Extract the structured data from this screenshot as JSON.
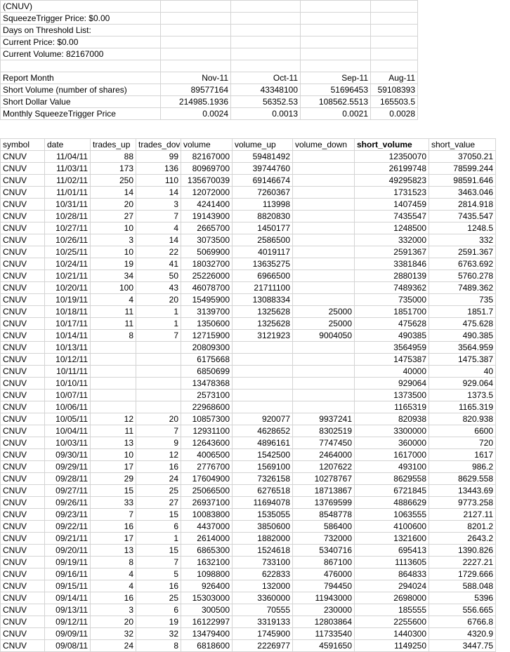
{
  "info": {
    "lines": [
      "(CNUV)",
      "SqueezeTrigger Price: $0.00",
      "Days on Threshold List:",
      "Current Price: $0.00",
      "Current Volume: 82167000"
    ]
  },
  "report": {
    "header": [
      "Report Month",
      "Nov-11",
      "Oct-11",
      "Sep-11",
      "Aug-11"
    ],
    "rows": [
      [
        "Short Volume (number of shares)",
        89577164,
        43348100,
        51696453,
        59108393
      ],
      [
        "Short Dollar Value",
        214985.1936,
        56352.53,
        108562.5513,
        165503.5
      ],
      [
        "Monthly SqueezeTrigger Price",
        0.0024,
        0.0013,
        0.0021,
        0.0028
      ]
    ]
  },
  "table": {
    "columns": [
      "symbol",
      "date",
      "trades_up",
      "trades_dov",
      "volume",
      "volume_up",
      "volume_down",
      "short_volume",
      "short_value"
    ],
    "rows": [
      [
        "CNUV",
        "11/04/11",
        88,
        99,
        82167000,
        59481492,
        null,
        12350070,
        37050.21
      ],
      [
        "CNUV",
        "11/03/11",
        173,
        136,
        80969700,
        39744760,
        null,
        26199748,
        78599.244
      ],
      [
        "CNUV",
        "11/02/11",
        250,
        110,
        135670039,
        69146674,
        null,
        49295823,
        98591.646
      ],
      [
        "CNUV",
        "11/01/11",
        14,
        14,
        12072000,
        7260367,
        null,
        1731523,
        3463.046
      ],
      [
        "CNUV",
        "10/31/11",
        20,
        3,
        4241400,
        113998,
        null,
        1407459,
        2814.918
      ],
      [
        "CNUV",
        "10/28/11",
        27,
        7,
        19143900,
        8820830,
        null,
        7435547,
        7435.547
      ],
      [
        "CNUV",
        "10/27/11",
        10,
        4,
        2665700,
        1450177,
        null,
        1248500,
        1248.5
      ],
      [
        "CNUV",
        "10/26/11",
        3,
        14,
        3073500,
        2586500,
        null,
        332000,
        332
      ],
      [
        "CNUV",
        "10/25/11",
        10,
        22,
        5069900,
        4019117,
        null,
        2591367,
        2591.367
      ],
      [
        "CNUV",
        "10/24/11",
        19,
        41,
        18032700,
        13635275,
        null,
        3381846,
        6763.692
      ],
      [
        "CNUV",
        "10/21/11",
        34,
        50,
        25226000,
        6966500,
        null,
        2880139,
        5760.278
      ],
      [
        "CNUV",
        "10/20/11",
        100,
        43,
        46078700,
        21711100,
        null,
        7489362,
        7489.362
      ],
      [
        "CNUV",
        "10/19/11",
        4,
        20,
        15495900,
        13088334,
        null,
        735000,
        735
      ],
      [
        "CNUV",
        "10/18/11",
        11,
        1,
        3139700,
        1325628,
        25000,
        1851700,
        1851.7
      ],
      [
        "CNUV",
        "10/17/11",
        11,
        1,
        1350600,
        1325628,
        25000,
        475628,
        475.628
      ],
      [
        "CNUV",
        "10/14/11",
        8,
        7,
        12715900,
        3121923,
        9004050,
        490385,
        490.385
      ],
      [
        "CNUV",
        "10/13/11",
        null,
        null,
        20809300,
        null,
        null,
        3564959,
        3564.959
      ],
      [
        "CNUV",
        "10/12/11",
        null,
        null,
        6175668,
        null,
        null,
        1475387,
        1475.387
      ],
      [
        "CNUV",
        "10/11/11",
        null,
        null,
        6850699,
        null,
        null,
        40000,
        40
      ],
      [
        "CNUV",
        "10/10/11",
        null,
        null,
        13478368,
        null,
        null,
        929064,
        929.064
      ],
      [
        "CNUV",
        "10/07/11",
        null,
        null,
        2573100,
        null,
        null,
        1373500,
        1373.5
      ],
      [
        "CNUV",
        "10/06/11",
        null,
        null,
        22968600,
        null,
        null,
        1165319,
        1165.319
      ],
      [
        "CNUV",
        "10/05/11",
        12,
        20,
        10857300,
        920077,
        9937241,
        820938,
        820.938
      ],
      [
        "CNUV",
        "10/04/11",
        11,
        7,
        12931100,
        4628652,
        8302519,
        3300000,
        6600
      ],
      [
        "CNUV",
        "10/03/11",
        13,
        9,
        12643600,
        4896161,
        7747450,
        360000,
        720
      ],
      [
        "CNUV",
        "09/30/11",
        10,
        12,
        4006500,
        1542500,
        2464000,
        1617000,
        1617
      ],
      [
        "CNUV",
        "09/29/11",
        17,
        16,
        2776700,
        1569100,
        1207622,
        493100,
        986.2
      ],
      [
        "CNUV",
        "09/28/11",
        29,
        24,
        17604900,
        7326158,
        10278767,
        8629558,
        8629.558
      ],
      [
        "CNUV",
        "09/27/11",
        15,
        25,
        25066500,
        6276518,
        18713867,
        6721845,
        13443.69
      ],
      [
        "CNUV",
        "09/26/11",
        33,
        27,
        26937100,
        11694078,
        13769599,
        4886629,
        9773.258
      ],
      [
        "CNUV",
        "09/23/11",
        7,
        15,
        10083800,
        1535055,
        8548778,
        1063555,
        2127.11
      ],
      [
        "CNUV",
        "09/22/11",
        16,
        6,
        4437000,
        3850600,
        586400,
        4100600,
        8201.2
      ],
      [
        "CNUV",
        "09/21/11",
        17,
        1,
        2614000,
        1882000,
        732000,
        1321600,
        2643.2
      ],
      [
        "CNUV",
        "09/20/11",
        13,
        15,
        6865300,
        1524618,
        5340716,
        695413,
        1390.826
      ],
      [
        "CNUV",
        "09/19/11",
        8,
        7,
        1632100,
        733100,
        867100,
        1113605,
        2227.21
      ],
      [
        "CNUV",
        "09/16/11",
        4,
        5,
        1098800,
        622833,
        476000,
        864833,
        1729.666
      ],
      [
        "CNUV",
        "09/15/11",
        4,
        16,
        926400,
        132000,
        794450,
        294024,
        588.048
      ],
      [
        "CNUV",
        "09/14/11",
        16,
        25,
        15303000,
        3360000,
        11943000,
        2698000,
        5396
      ],
      [
        "CNUV",
        "09/13/11",
        3,
        6,
        300500,
        70555,
        230000,
        185555,
        556.665
      ],
      [
        "CNUV",
        "09/12/11",
        20,
        19,
        16122997,
        3319133,
        12803864,
        2255600,
        6766.8
      ],
      [
        "CNUV",
        "09/09/11",
        32,
        32,
        13479400,
        1745900,
        11733540,
        1440300,
        4320.9
      ],
      [
        "CNUV",
        "09/08/11",
        24,
        8,
        6818600,
        2226977,
        4591650,
        1149250,
        3447.75
      ]
    ]
  }
}
